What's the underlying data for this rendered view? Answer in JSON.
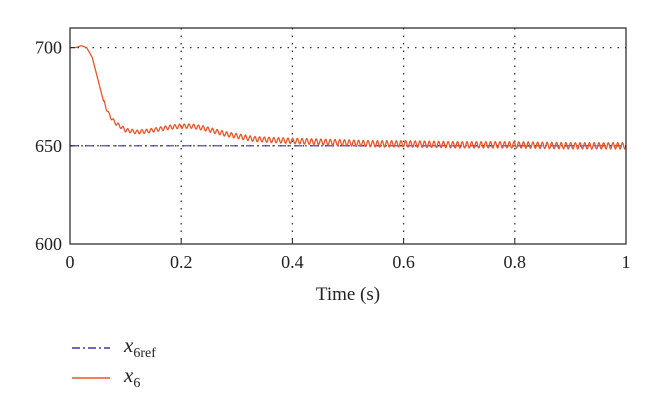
{
  "chart_data": {
    "type": "line",
    "title": "",
    "xlabel": "Time (s)",
    "ylabel": "",
    "xlim": [
      0,
      1
    ],
    "ylim": [
      600,
      710
    ],
    "x_ticks": [
      "0",
      "0.2",
      "0.4",
      "0.6",
      "0.8",
      "1"
    ],
    "y_ticks": [
      "600",
      "650",
      "700"
    ],
    "grid": "dotted",
    "legend_position": "below",
    "series": [
      {
        "name": "x6ref",
        "name_base": "x",
        "name_sub": "6ref",
        "style": "dash-dot",
        "color": "#3a3aa8",
        "x": [
          0,
          1
        ],
        "y": [
          650,
          650
        ]
      },
      {
        "name": "x6",
        "name_base": "x",
        "name_sub": "6",
        "style": "solid",
        "color": "#e8552a",
        "x": [
          0,
          0.01,
          0.02,
          0.03,
          0.04,
          0.05,
          0.06,
          0.07,
          0.08,
          0.09,
          0.1,
          0.12,
          0.14,
          0.16,
          0.18,
          0.2,
          0.22,
          0.24,
          0.26,
          0.28,
          0.3,
          0.33,
          0.36,
          0.4,
          0.45,
          0.5,
          0.55,
          0.6,
          0.7,
          0.8,
          0.9,
          1.0
        ],
        "y": [
          700,
          700,
          701,
          700,
          695,
          684,
          673,
          666,
          662,
          660,
          658,
          657,
          657.5,
          658.5,
          659.5,
          660,
          660,
          659,
          657.5,
          656,
          655,
          653.5,
          653,
          652.5,
          652,
          651.5,
          651,
          651,
          650.5,
          650.5,
          650,
          650
        ],
        "ripple_amplitude": 1.6
      }
    ]
  }
}
